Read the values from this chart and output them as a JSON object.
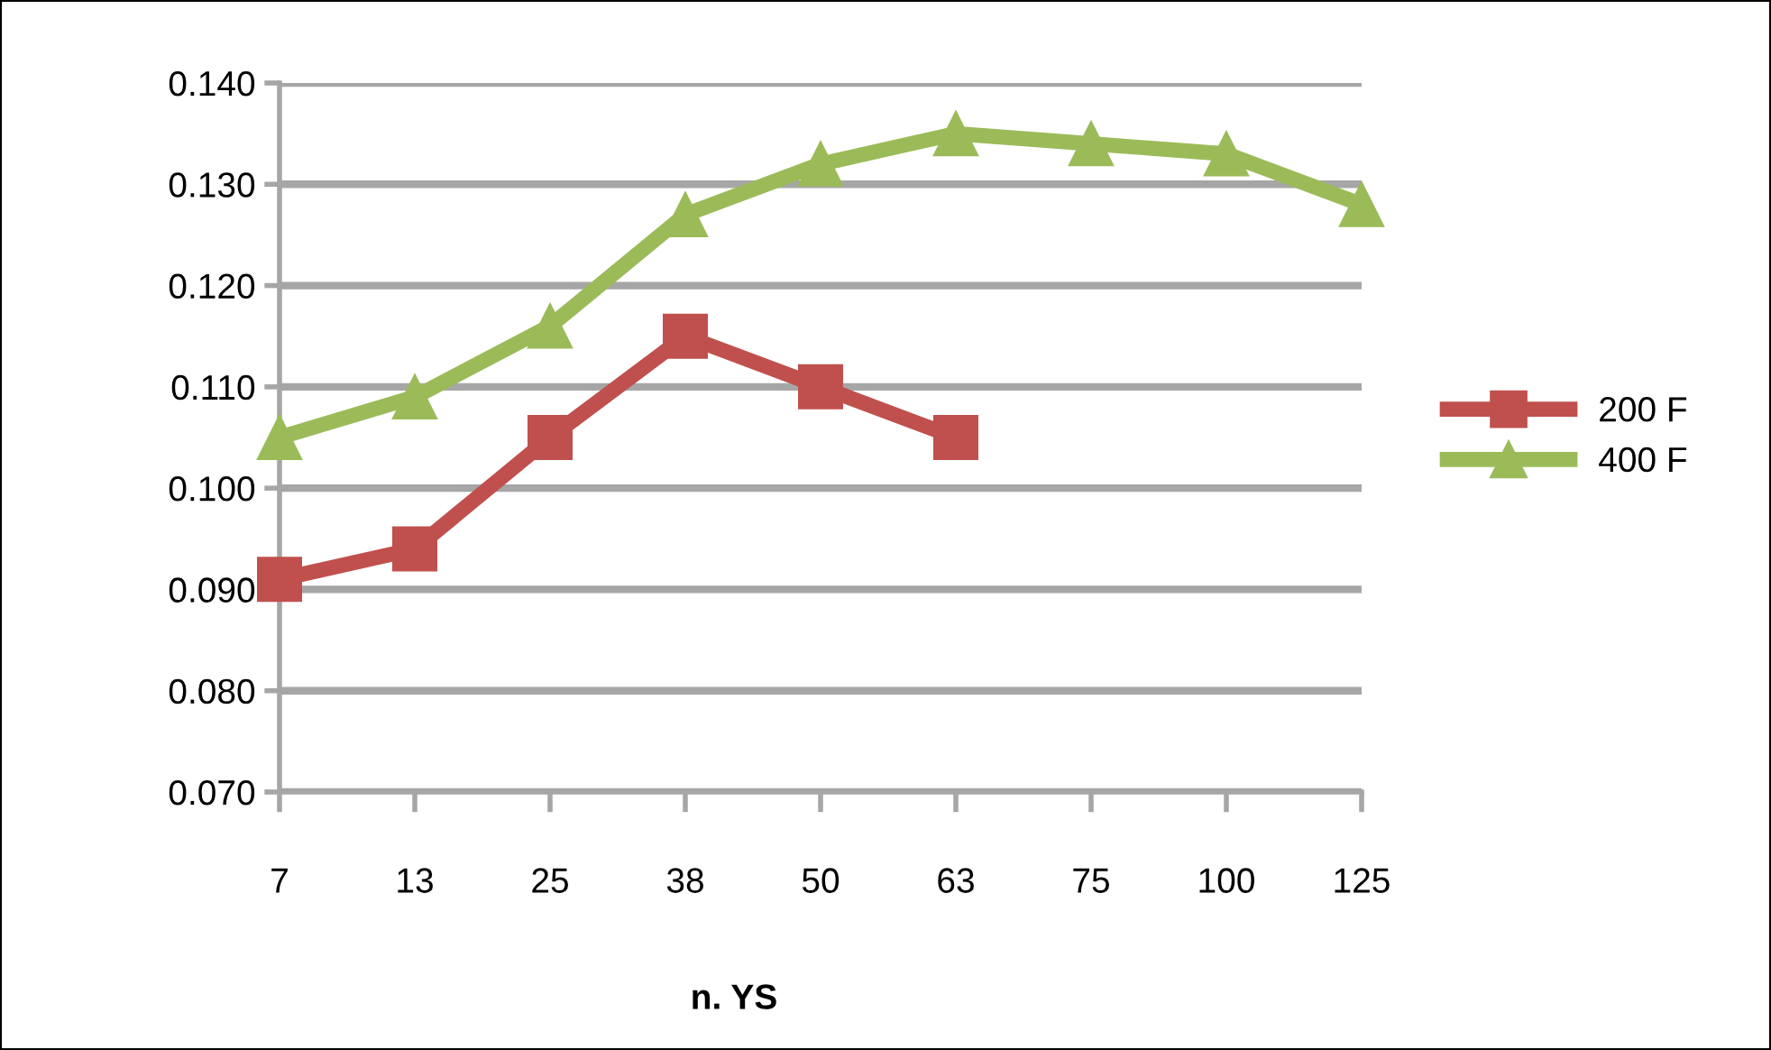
{
  "chart_data": {
    "type": "line",
    "xlabel": "n. YS",
    "categories": [
      "7",
      "13",
      "25",
      "38",
      "50",
      "63",
      "75",
      "100",
      "125"
    ],
    "series": [
      {
        "name": "200 F",
        "color": "#c0504d",
        "marker": "square",
        "values": [
          0.091,
          0.094,
          0.105,
          0.115,
          0.11,
          0.105,
          null,
          null,
          null
        ]
      },
      {
        "name": "400 F",
        "color": "#9bbb59",
        "marker": "triangle",
        "values": [
          0.105,
          0.109,
          0.116,
          0.127,
          0.132,
          0.135,
          0.134,
          0.133,
          0.128
        ]
      }
    ],
    "ylim": [
      0.07,
      0.14
    ],
    "yticks": [
      {
        "value": 0.07,
        "label": "0.070"
      },
      {
        "value": 0.08,
        "label": "0.080"
      },
      {
        "value": 0.09,
        "label": "0.090"
      },
      {
        "value": 0.1,
        "label": "0.100"
      },
      {
        "value": 0.11,
        "label": "0.110"
      },
      {
        "value": 0.12,
        "label": "0.120"
      },
      {
        "value": 0.13,
        "label": "0.130"
      },
      {
        "value": 0.14,
        "label": "0.140"
      }
    ],
    "grid": "y",
    "legend": "right",
    "line_style": "solid"
  }
}
